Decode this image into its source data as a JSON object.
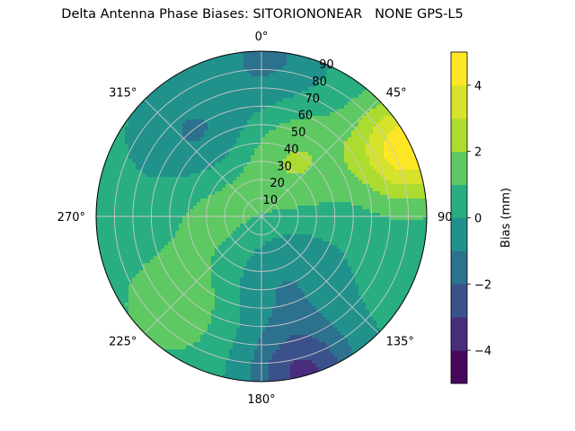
{
  "chart_data": {
    "type": "heatmap",
    "projection": "polar",
    "title": "Delta Antenna Phase Biases: SITORIONONEAR   NONE GPS-L5",
    "angle_axis": {
      "zero_direction": "north",
      "direction": "clockwise",
      "tick_labels": [
        "0°",
        "45°",
        "90°",
        "135°",
        "180°",
        "225°",
        "270°",
        "315°"
      ]
    },
    "radial_axis": {
      "range": [
        0,
        90
      ],
      "tick_labels": [
        "10",
        "20",
        "30",
        "40",
        "50",
        "60",
        "70",
        "80",
        "90"
      ]
    },
    "grid": true,
    "colorbar": {
      "label": "Bias (mm)",
      "colormap": "viridis",
      "range": [
        -5,
        5
      ],
      "levels": [
        -5,
        -4,
        -3,
        -2,
        -1,
        0,
        1,
        2,
        3,
        4,
        5
      ],
      "tick_labels": [
        "−4",
        "−2",
        "0",
        "2",
        "4"
      ],
      "colors": [
        "#46085c",
        "#472d7b",
        "#3b518b",
        "#2c718e",
        "#21918c",
        "#28ae80",
        "#5ec962",
        "#addc30",
        "#d6e22b",
        "#fde725"
      ]
    },
    "features": [
      {
        "description": "high bias near horizon, NE",
        "az": 65,
        "el_from_zenith": 88,
        "value": 4.5
      },
      {
        "description": "positive lobe",
        "az": 30,
        "el_from_zenith": 35,
        "value": 1.8
      },
      {
        "description": "positive lobe",
        "az": 225,
        "el_from_zenith": 68,
        "value": 1.6
      },
      {
        "description": "positive lobe",
        "az": 280,
        "el_from_zenith": 25,
        "value": 1.2
      },
      {
        "description": "negative lobe",
        "az": 320,
        "el_from_zenith": 55,
        "value": -1.5
      },
      {
        "description": "negative lobe",
        "az": 160,
        "el_from_zenith": 35,
        "value": -1.2
      },
      {
        "description": "negative lobe",
        "az": 2,
        "el_from_zenith": 88,
        "value": -1.5
      },
      {
        "description": "negative horizon edge",
        "az": 165,
        "el_from_zenith": 90,
        "value": -3.5
      }
    ]
  }
}
